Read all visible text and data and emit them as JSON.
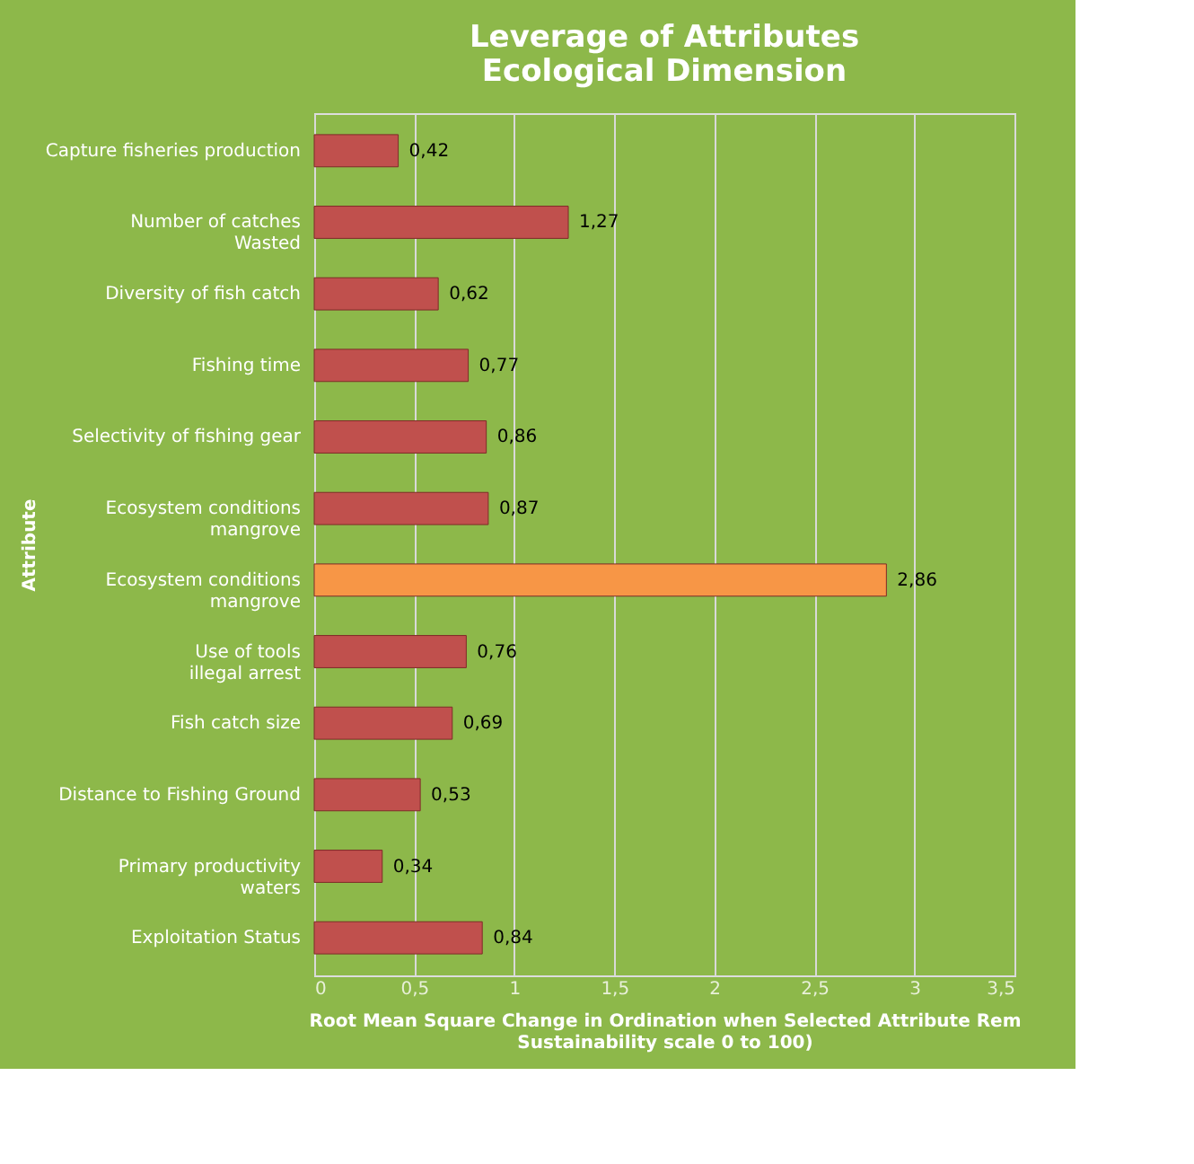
{
  "chart_data": {
    "type": "bar",
    "orientation": "horizontal",
    "title": "Leverage of Attributes\nEcological Dimension",
    "ylabel": "Attribute",
    "xlabel": "Root Mean Square Change in Ordination when Selected Attribute Rem\nSustainability scale 0 to 100)",
    "categories": [
      "Capture fisheries production",
      "Number of catches\nWasted",
      "Diversity of fish catch",
      "Fishing time",
      "Selectivity of fishing gear",
      "Ecosystem conditions\nmangrove",
      "Ecosystem conditions\nmangrove",
      "Use of tools\nillegal arrest",
      "Fish catch size",
      "Distance to Fishing Ground",
      "Primary productivity\nwaters",
      "Exploitation Status"
    ],
    "values": [
      0.42,
      1.27,
      0.62,
      0.77,
      0.86,
      0.87,
      2.86,
      0.76,
      0.69,
      0.53,
      0.34,
      0.84
    ],
    "value_labels": [
      "0,42",
      "1,27",
      "0,62",
      "0,77",
      "0,86",
      "0,87",
      "2,86",
      "0,76",
      "0,69",
      "0,53",
      "0,34",
      "0,84"
    ],
    "colors": [
      "#c0504d",
      "#c0504d",
      "#c0504d",
      "#c0504d",
      "#c0504d",
      "#c0504d",
      "#f79646",
      "#c0504d",
      "#c0504d",
      "#c0504d",
      "#c0504d",
      "#c0504d"
    ],
    "xlim": [
      0,
      3.5
    ],
    "xticks": [
      {
        "value": 0,
        "label": "0"
      },
      {
        "value": 0.5,
        "label": "0,5"
      },
      {
        "value": 1,
        "label": "1"
      },
      {
        "value": 1.5,
        "label": "1,5"
      },
      {
        "value": 2,
        "label": "2"
      },
      {
        "value": 2.5,
        "label": "2,5"
      },
      {
        "value": 3,
        "label": "3"
      },
      {
        "value": 3.5,
        "label": "3,5"
      }
    ],
    "grid": "x"
  }
}
